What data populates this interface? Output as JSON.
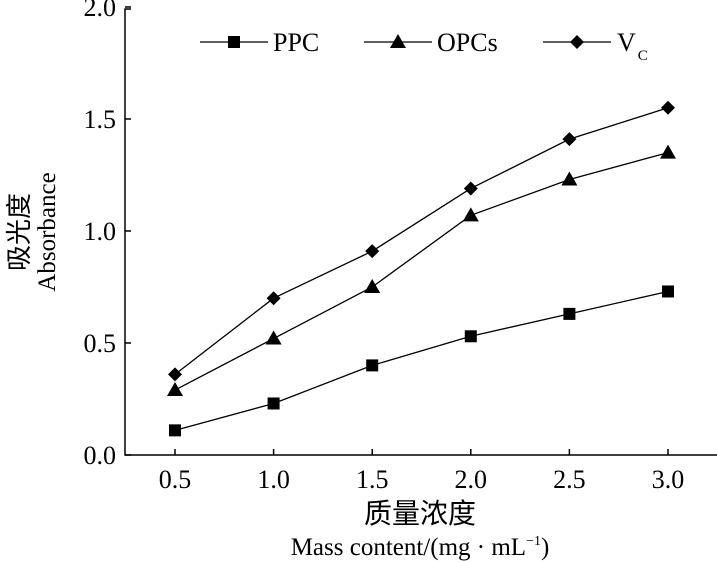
{
  "chart_data": {
    "type": "line",
    "x": [
      0.5,
      1.0,
      1.5,
      2.0,
      2.5,
      3.0
    ],
    "series": [
      {
        "name": "PPC",
        "marker": "square",
        "values": [
          0.11,
          0.23,
          0.4,
          0.53,
          0.63,
          0.73
        ]
      },
      {
        "name": "OPCs",
        "marker": "triangle",
        "values": [
          0.29,
          0.52,
          0.75,
          1.07,
          1.23,
          1.35
        ]
      },
      {
        "name": "V",
        "subscript": "C",
        "marker": "diamond",
        "values": [
          0.36,
          0.7,
          0.91,
          1.19,
          1.41,
          1.55
        ]
      }
    ],
    "xlabel_cn": "质量浓度",
    "xlabel": "Mass content/(mg · mL",
    "xlabel_sup": "−1",
    "xlabel_end": ")",
    "ylabel_cn": "吸光度",
    "ylabel": "Absorbance",
    "xticks": [
      "0.5",
      "1.0",
      "1.5",
      "2.0",
      "2.5",
      "3.0"
    ],
    "yticks": [
      "0.0",
      "0.5",
      "1.0",
      "1.5",
      "2.0"
    ],
    "xlim": [
      0.25,
      3.25
    ],
    "ylim": [
      0,
      2.0
    ],
    "legend_position": "top",
    "grid": false,
    "color": "#000000"
  }
}
